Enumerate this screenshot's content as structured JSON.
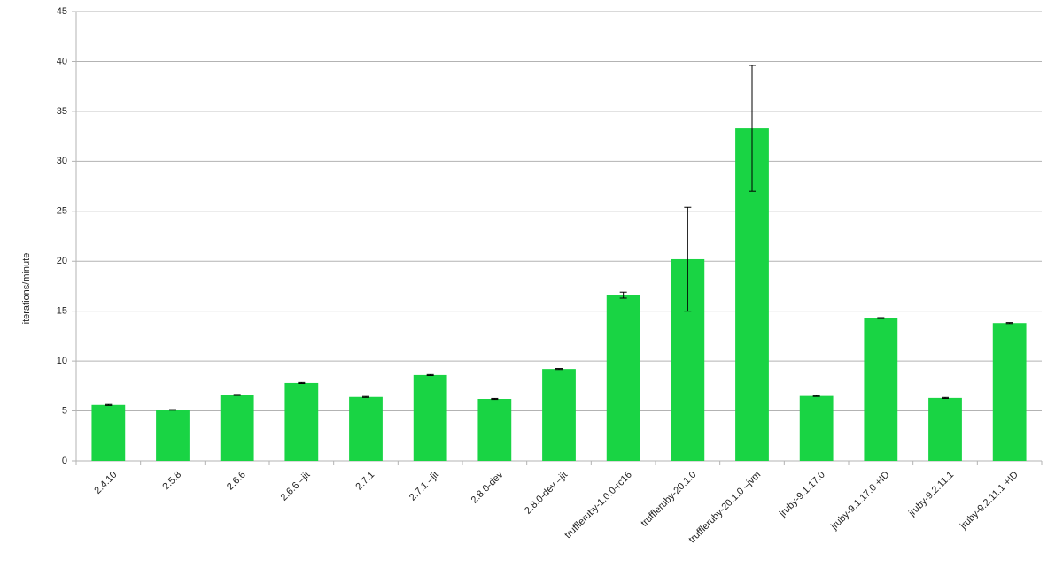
{
  "chart_data": {
    "type": "bar",
    "y_label": "iterations/minute",
    "categories": [
      "2.4.10",
      "2.5.8",
      "2.6.6",
      "2.6.6 –jit",
      "2.7.1",
      "2.7.1 –jit",
      "2.8.0-dev",
      "2.8.0-dev –jit",
      "truffleruby-1.0.0-rc16",
      "truffleruby-20.1.0",
      "truffleruby-20.1.0 –jvm",
      "jruby-9.1.17.0",
      "jruby-9.1.17.0 +ID",
      "jruby-9.2.11.1",
      "jruby-9.2.11.1 +ID"
    ],
    "values": [
      5.6,
      5.1,
      6.6,
      7.8,
      6.4,
      8.6,
      6.2,
      9.2,
      16.6,
      20.2,
      33.3,
      6.5,
      14.3,
      6.3,
      13.8
    ],
    "errors": [
      0.05,
      0.03,
      0.05,
      0.05,
      0.05,
      0.05,
      0.05,
      0.05,
      0.3,
      5.2,
      6.3,
      0.05,
      0.05,
      0.05,
      0.05
    ],
    "color": "#19d444",
    "ylim": [
      0,
      45
    ],
    "yticks": [
      0,
      5,
      10,
      15,
      20,
      25,
      30,
      35,
      40,
      45
    ],
    "grid": true
  }
}
